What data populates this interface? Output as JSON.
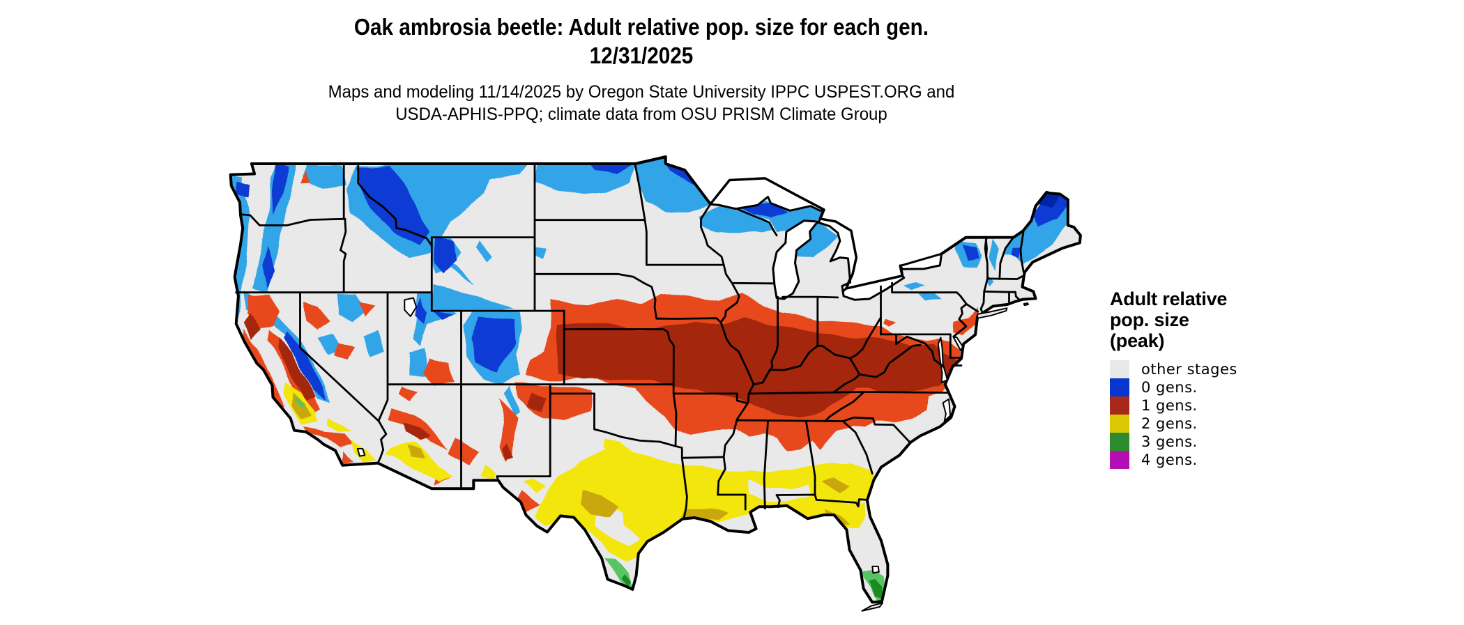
{
  "header": {
    "title_line1": "Oak ambrosia beetle: Adult relative pop. size for each gen.",
    "title_line2": "12/31/2025",
    "subtitle_line1": "Maps and modeling 11/14/2025 by Oregon State University IPPC USPEST.ORG and",
    "subtitle_line2": "USDA-APHIS-PPQ; climate data from OSU PRISM Climate Group"
  },
  "legend": {
    "title_lines": [
      "Adult relative",
      "pop. size",
      "(peak)"
    ],
    "items": [
      {
        "label": "other stages",
        "color": "#E8E8E8"
      },
      {
        "label": "0 gens.",
        "color": "#0636CE"
      },
      {
        "label": "1 gens.",
        "color": "#A8291B"
      },
      {
        "label": "2 gens.",
        "color": "#DCC705"
      },
      {
        "label": "3 gens.",
        "color": "#2F8B2F"
      },
      {
        "label": "4 gens.",
        "color": "#B50DB5"
      }
    ]
  },
  "map_palette": {
    "base_other_stages": "#E9E9E9",
    "light_blue": "#31A5E8",
    "dark_blue": "#0A3AD4",
    "deep_blue": "#0527A8",
    "orange": "#E8481C",
    "dark_red": "#A3250F",
    "yellow": "#F2E60D",
    "dark_gold": "#C9A70E",
    "light_green": "#58C463",
    "dark_green": "#1E8B22",
    "water": "#FFFFFF",
    "border": "#000000"
  }
}
